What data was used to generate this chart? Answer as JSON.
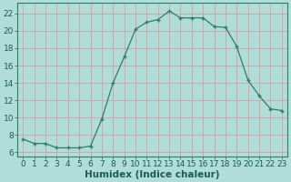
{
  "x": [
    0,
    1,
    2,
    3,
    4,
    5,
    6,
    7,
    8,
    9,
    10,
    11,
    12,
    13,
    14,
    15,
    16,
    17,
    18,
    19,
    20,
    21,
    22,
    23
  ],
  "y": [
    7.5,
    7.0,
    7.0,
    6.5,
    6.5,
    6.5,
    6.7,
    9.8,
    14.0,
    17.0,
    20.2,
    21.0,
    21.3,
    22.3,
    21.5,
    21.5,
    21.5,
    20.5,
    20.4,
    18.2,
    14.3,
    12.5,
    11.0,
    10.8
  ],
  "line_color": "#2d7d6b",
  "marker": "+",
  "marker_color": "#2d7d6b",
  "bg_color": "#b0ddd8",
  "grid_color": "#d4a0a0",
  "xlabel": "Humidex (Indice chaleur)",
  "xlim": [
    -0.5,
    23.5
  ],
  "ylim": [
    5.5,
    23.2
  ],
  "yticks": [
    6,
    8,
    10,
    12,
    14,
    16,
    18,
    20,
    22
  ],
  "xticks": [
    0,
    1,
    2,
    3,
    4,
    5,
    6,
    7,
    8,
    9,
    10,
    11,
    12,
    13,
    14,
    15,
    16,
    17,
    18,
    19,
    20,
    21,
    22,
    23
  ],
  "tick_fontsize": 6.5,
  "xlabel_fontsize": 7.5
}
